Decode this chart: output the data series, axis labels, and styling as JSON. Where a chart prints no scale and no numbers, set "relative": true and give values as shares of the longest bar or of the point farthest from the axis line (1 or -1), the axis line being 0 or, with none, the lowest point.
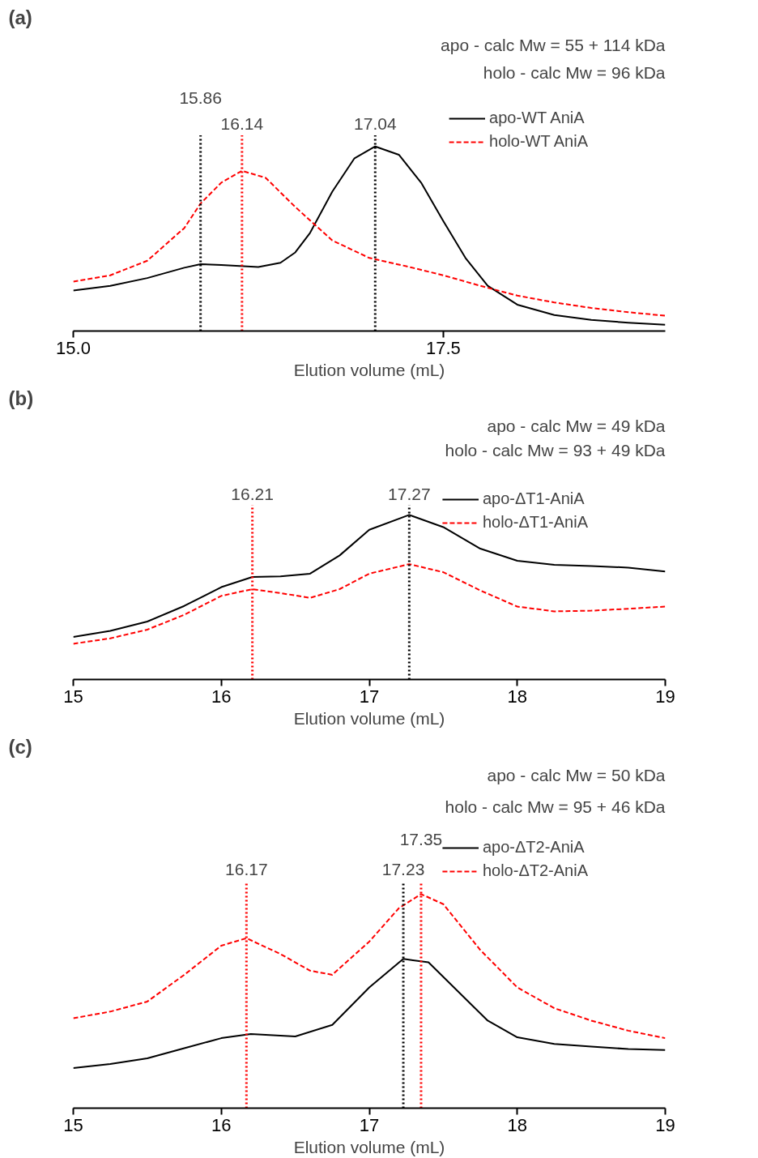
{
  "chart_data": [
    {
      "type": "line",
      "title": "(a)",
      "xlabel": "Elution volume (mL)",
      "relative": true,
      "tick_labels": "x",
      "legend": "top right",
      "grid": false,
      "annotations": [
        "apo - calc Mw = 55 + 114 kDa",
        "holo - calc Mw = 96 kDa"
      ],
      "xlim": [
        15,
        19
      ],
      "xticks": [
        {
          "value": 15,
          "label": "15.0"
        },
        {
          "value": 17.5,
          "label": "17.5"
        }
      ],
      "ref_lines": [
        {
          "axis": "x",
          "value": 16.14,
          "label": "16.14",
          "color": "#ff0000",
          "line_style": "dotted"
        },
        {
          "axis": "x",
          "value": 15.86,
          "label": "15.86",
          "color": "#000000",
          "line_style": "dotted"
        },
        {
          "axis": "x",
          "value": 17.04,
          "label": "17.04",
          "color": "#000000",
          "line_style": "dotted"
        }
      ],
      "series": [
        {
          "name": "apo-WT AniA",
          "color": "#000000",
          "line_style": "solid",
          "x": [
            15.0,
            15.25,
            15.5,
            15.75,
            15.86,
            16.0,
            16.25,
            16.4,
            16.5,
            16.6,
            16.75,
            16.9,
            17.04,
            17.2,
            17.35,
            17.5,
            17.65,
            17.8,
            18.0,
            18.25,
            18.5,
            18.75,
            19.0
          ],
          "values": [
            0.219,
            0.245,
            0.287,
            0.343,
            0.362,
            0.358,
            0.347,
            0.37,
            0.426,
            0.532,
            0.755,
            0.936,
            1.0,
            0.955,
            0.804,
            0.596,
            0.396,
            0.245,
            0.143,
            0.087,
            0.06,
            0.045,
            0.034
          ]
        },
        {
          "name": "holo-WT AniA",
          "color": "#ff0000",
          "line_style": "dashed",
          "x": [
            15.0,
            15.25,
            15.5,
            15.75,
            15.86,
            16.0,
            16.14,
            16.3,
            16.5,
            16.75,
            17.0,
            17.25,
            17.5,
            17.75,
            18.0,
            18.25,
            18.5,
            18.75,
            19.0
          ],
          "values": [
            0.268,
            0.302,
            0.381,
            0.558,
            0.691,
            0.804,
            0.868,
            0.83,
            0.672,
            0.491,
            0.396,
            0.351,
            0.302,
            0.245,
            0.192,
            0.155,
            0.125,
            0.102,
            0.083
          ]
        }
      ]
    },
    {
      "type": "line",
      "title": "(b)",
      "xlabel": "Elution volume (mL)",
      "relative": true,
      "tick_labels": "x",
      "legend": "top right",
      "grid": false,
      "annotations": [
        "apo - calc Mw = 49 kDa",
        "holo - calc Mw = 93 + 49 kDa"
      ],
      "xlim": [
        15,
        19
      ],
      "xticks": [
        15,
        16,
        17,
        18,
        19
      ],
      "ref_lines": [
        {
          "axis": "x",
          "value": 16.21,
          "label": "16.21",
          "color": "#ff0000",
          "line_style": "dotted"
        },
        {
          "axis": "x",
          "value": 17.27,
          "label": "17.27",
          "color": "#000000",
          "line_style": "dotted"
        }
      ],
      "series": [
        {
          "name": "apo-ΔT1-AniA",
          "color": "#000000",
          "line_style": "solid",
          "x": [
            15.0,
            15.25,
            15.5,
            15.75,
            16.0,
            16.21,
            16.4,
            16.6,
            16.8,
            17.0,
            17.27,
            17.5,
            17.75,
            18.0,
            18.25,
            18.5,
            18.75,
            19.0
          ],
          "values": [
            0.258,
            0.295,
            0.352,
            0.447,
            0.561,
            0.623,
            0.627,
            0.643,
            0.754,
            0.91,
            1.0,
            0.926,
            0.795,
            0.721,
            0.697,
            0.689,
            0.68,
            0.656
          ]
        },
        {
          "name": "holo-ΔT1-AniA",
          "color": "#ff0000",
          "line_style": "dashed",
          "x": [
            15.0,
            15.25,
            15.5,
            15.75,
            16.0,
            16.21,
            16.4,
            16.6,
            16.8,
            17.0,
            17.27,
            17.5,
            17.75,
            18.0,
            18.25,
            18.5,
            18.75,
            19.0
          ],
          "values": [
            0.217,
            0.25,
            0.303,
            0.393,
            0.508,
            0.549,
            0.525,
            0.496,
            0.549,
            0.643,
            0.701,
            0.652,
            0.541,
            0.443,
            0.414,
            0.418,
            0.43,
            0.443
          ]
        }
      ]
    },
    {
      "type": "line",
      "title": "(c)",
      "xlabel": "Elution volume (mL)",
      "relative": true,
      "tick_labels": "x",
      "legend": "top right",
      "grid": false,
      "annotations": [
        "apo - calc Mw = 50 kDa",
        "holo - calc Mw = 95 + 46 kDa"
      ],
      "xlim": [
        15,
        19
      ],
      "xticks": [
        15,
        16,
        17,
        18,
        19
      ],
      "ref_lines": [
        {
          "axis": "x",
          "value": 16.17,
          "label": "16.17",
          "color": "#ff0000",
          "line_style": "dotted"
        },
        {
          "axis": "x",
          "value": 17.23,
          "label": "17.23",
          "color": "#000000",
          "line_style": "dotted"
        },
        {
          "axis": "x",
          "value": 17.35,
          "label": "17.35",
          "color": "#ff0000",
          "line_style": "dotted"
        }
      ],
      "series": [
        {
          "name": "apo-ΔT2-AniA",
          "color": "#000000",
          "line_style": "solid",
          "x": [
            15.0,
            15.25,
            15.5,
            15.75,
            16.0,
            16.2,
            16.5,
            16.75,
            17.0,
            17.23,
            17.4,
            17.6,
            17.8,
            18.0,
            18.25,
            18.5,
            18.75,
            19.0
          ],
          "values": [
            0.187,
            0.206,
            0.233,
            0.28,
            0.327,
            0.346,
            0.335,
            0.389,
            0.564,
            0.697,
            0.681,
            0.545,
            0.409,
            0.331,
            0.3,
            0.288,
            0.276,
            0.272
          ]
        },
        {
          "name": "holo-ΔT2-AniA",
          "color": "#ff0000",
          "line_style": "dashed",
          "x": [
            15.0,
            15.25,
            15.5,
            15.75,
            16.0,
            16.17,
            16.4,
            16.6,
            16.75,
            17.0,
            17.2,
            17.35,
            17.5,
            17.75,
            18.0,
            18.25,
            18.5,
            18.75,
            19.0
          ],
          "values": [
            0.42,
            0.451,
            0.498,
            0.623,
            0.759,
            0.794,
            0.72,
            0.642,
            0.623,
            0.778,
            0.934,
            1.0,
            0.953,
            0.739,
            0.564,
            0.467,
            0.409,
            0.362,
            0.327
          ]
        }
      ]
    }
  ]
}
